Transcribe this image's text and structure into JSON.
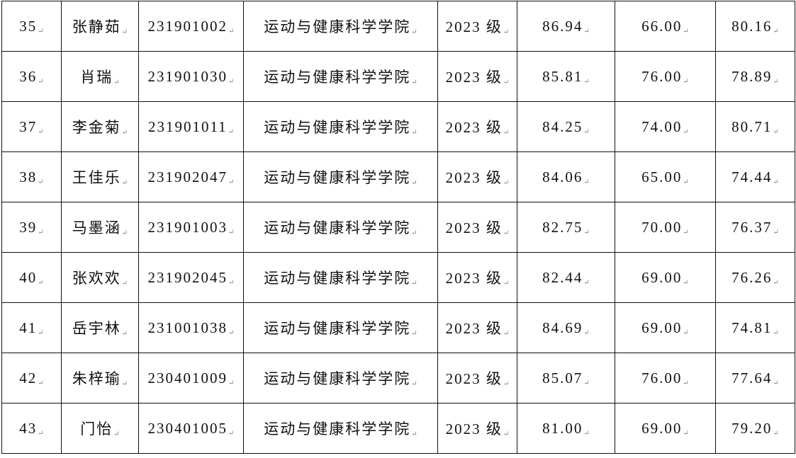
{
  "rows": [
    {
      "no": "35",
      "name": "张静茹",
      "id": "231901002",
      "college": "运动与健康科学学院",
      "grade": "2023 级",
      "s1": "86.94",
      "s2": "66.00",
      "s3": "80.16"
    },
    {
      "no": "36",
      "name": "肖瑞",
      "id": "231901030",
      "college": "运动与健康科学学院",
      "grade": "2023 级",
      "s1": "85.81",
      "s2": "76.00",
      "s3": "78.89"
    },
    {
      "no": "37",
      "name": "李金菊",
      "id": "231901011",
      "college": "运动与健康科学学院",
      "grade": "2023 级",
      "s1": "84.25",
      "s2": "74.00",
      "s3": "80.71"
    },
    {
      "no": "38",
      "name": "王佳乐",
      "id": "231902047",
      "college": "运动与健康科学学院",
      "grade": "2023 级",
      "s1": "84.06",
      "s2": "65.00",
      "s3": "74.44"
    },
    {
      "no": "39",
      "name": "马墨涵",
      "id": "231901003",
      "college": "运动与健康科学学院",
      "grade": "2023 级",
      "s1": "82.75",
      "s2": "70.00",
      "s3": "76.37"
    },
    {
      "no": "40",
      "name": "张欢欢",
      "id": "231902045",
      "college": "运动与健康科学学院",
      "grade": "2023 级",
      "s1": "82.44",
      "s2": "69.00",
      "s3": "76.26"
    },
    {
      "no": "41",
      "name": "岳宇林",
      "id": "231001038",
      "college": "运动与健康科学学院",
      "grade": "2023 级",
      "s1": "84.69",
      "s2": "69.00",
      "s3": "74.81"
    },
    {
      "no": "42",
      "name": "朱梓瑜",
      "id": "230401009",
      "college": "运动与健康科学学院",
      "grade": "2023 级",
      "s1": "85.07",
      "s2": "76.00",
      "s3": "77.64"
    },
    {
      "no": "43",
      "name": "门怡",
      "id": "230401005",
      "college": "运动与健康科学学院",
      "grade": "2023 级",
      "s1": "81.00",
      "s2": "69.00",
      "s3": "79.20"
    }
  ]
}
